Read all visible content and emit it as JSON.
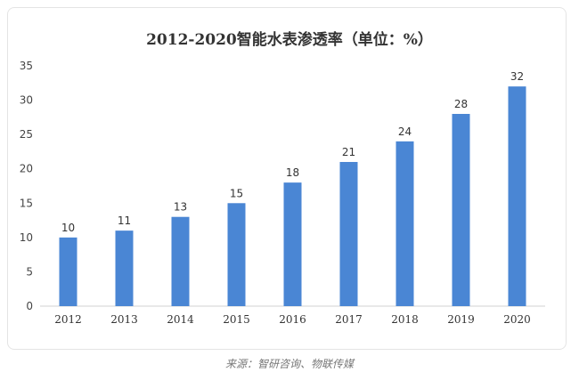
{
  "chart_data": {
    "type": "bar",
    "title": "2012-2020智能水表渗透率（单位：%）",
    "xlabel": "",
    "ylabel": "",
    "categories": [
      "2012",
      "2013",
      "2014",
      "2015",
      "2016",
      "2017",
      "2018",
      "2019",
      "2020"
    ],
    "values": [
      10,
      11,
      13,
      15,
      18,
      21,
      24,
      28,
      32
    ],
    "ylim": [
      0,
      35
    ],
    "yticks": [
      0,
      5,
      10,
      15,
      20,
      25,
      30,
      35
    ],
    "grid": false,
    "legend": "none",
    "bar_color": "#4a86d4",
    "data_labels": true
  },
  "source_note": "来源：智研咨询、物联传媒"
}
